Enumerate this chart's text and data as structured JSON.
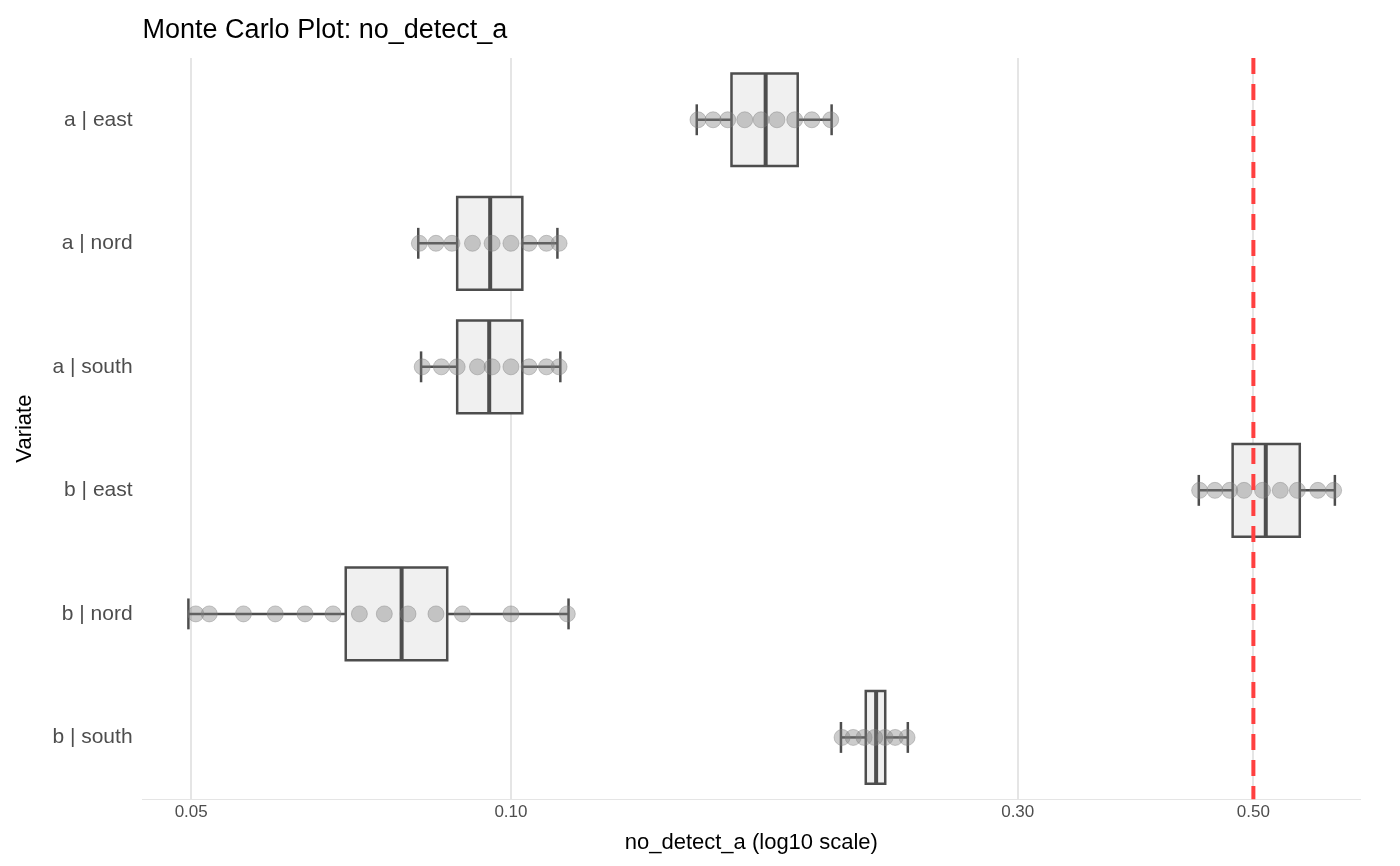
{
  "chart_data": {
    "type": "box",
    "orientation": "horizontal",
    "title": "Monte Carlo Plot: no_detect_a",
    "xlabel": "no_detect_a (log10 scale)",
    "ylabel": "Variate",
    "categories": [
      "a | east",
      "a | nord",
      "a | south",
      "b | east",
      "b | nord",
      "b | south"
    ],
    "boxes": [
      {
        "low": 0.1496,
        "q1": 0.1613,
        "median": 0.1737,
        "q3": 0.1862,
        "high": 0.2004
      },
      {
        "low": 0.0818,
        "q1": 0.089,
        "median": 0.0956,
        "q3": 0.1025,
        "high": 0.1106
      },
      {
        "low": 0.0823,
        "q1": 0.089,
        "median": 0.0954,
        "q3": 0.1025,
        "high": 0.1113
      },
      {
        "low": 0.4442,
        "q1": 0.478,
        "median": 0.5136,
        "q3": 0.5529,
        "high": 0.5966
      },
      {
        "low": 0.0497,
        "q1": 0.0699,
        "median": 0.0789,
        "q3": 0.0871,
        "high": 0.1133
      },
      {
        "low": 0.2045,
        "q1": 0.2158,
        "median": 0.2207,
        "q3": 0.2251,
        "high": 0.2364
      }
    ],
    "series": [
      {
        "type": "scatter",
        "color": "#808080",
        "x": [
          "a | east",
          "a | east",
          "a | east",
          "a | east",
          "a | east",
          "a | east",
          "a | east",
          "a | east",
          "a | east",
          "a | nord",
          "a | nord",
          "a | nord",
          "a | nord",
          "a | nord",
          "a | nord",
          "a | nord",
          "a | nord",
          "a | nord",
          "a | south",
          "a | south",
          "a | south",
          "a | south",
          "a | south",
          "a | south",
          "a | south",
          "a | south",
          "a | south",
          "b | east",
          "b | east",
          "b | east",
          "b | east",
          "b | east",
          "b | east",
          "b | east",
          "b | east",
          "b | east",
          "b | nord",
          "b | nord",
          "b | nord",
          "b | nord",
          "b | nord",
          "b | nord",
          "b | nord",
          "b | nord",
          "b | nord",
          "b | nord",
          "b | nord",
          "b | nord",
          "b | nord",
          "b | south",
          "b | south",
          "b | south",
          "b | south",
          "b | south",
          "b | south",
          "b | south"
        ],
        "values": [
          0.15,
          0.155,
          0.16,
          0.166,
          0.172,
          0.178,
          0.185,
          0.192,
          0.2,
          0.082,
          0.085,
          0.088,
          0.092,
          0.096,
          0.1,
          0.104,
          0.108,
          0.111,
          0.0825,
          0.086,
          0.089,
          0.093,
          0.096,
          0.1,
          0.104,
          0.108,
          0.111,
          0.445,
          0.46,
          0.475,
          0.49,
          0.51,
          0.53,
          0.55,
          0.575,
          0.595,
          0.0505,
          0.052,
          0.056,
          0.06,
          0.064,
          0.068,
          0.072,
          0.076,
          0.08,
          0.085,
          0.09,
          0.1,
          0.113,
          0.205,
          0.21,
          0.215,
          0.22,
          0.225,
          0.23,
          0.236
        ]
      }
    ],
    "xlim": [
      0.045,
      0.63
    ],
    "xticks": [
      0.05,
      {
        "value": 0.1,
        "label": "0.10"
      },
      {
        "value": 0.3,
        "label": "0.30"
      },
      {
        "value": 0.5,
        "label": "0.50"
      }
    ],
    "log": "x",
    "grid": "x",
    "marker": "circle",
    "ref_lines": [
      {
        "axis": "x",
        "value": 0.5,
        "color": "#ff4040",
        "line_style": "dashed"
      }
    ]
  }
}
